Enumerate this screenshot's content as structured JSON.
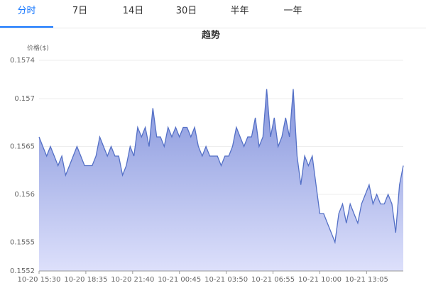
{
  "tabs": [
    "分时",
    "7日",
    "14日",
    "30日",
    "半年",
    "一年"
  ],
  "active_tab": 0,
  "chart_data": {
    "type": "area",
    "title": "趋势",
    "y_label": "价格($)",
    "x": [
      0,
      15,
      30,
      45,
      60,
      75,
      90,
      105,
      120,
      135,
      150,
      165,
      180,
      195,
      210,
      225,
      240,
      255,
      270,
      285,
      300,
      315,
      330,
      345,
      360,
      375,
      390,
      405,
      420,
      435,
      450,
      465,
      480,
      495,
      510,
      525,
      540,
      555,
      570,
      585,
      600,
      615,
      630,
      645,
      660,
      675,
      690,
      705,
      720,
      735,
      750,
      765,
      780,
      795,
      810,
      825,
      840,
      855,
      870,
      885,
      900,
      915,
      930,
      945,
      960,
      975,
      990,
      1005,
      1020,
      1035,
      1050,
      1065,
      1080,
      1095,
      1110,
      1125,
      1140,
      1155,
      1170,
      1185,
      1200,
      1215,
      1230,
      1245,
      1260,
      1275,
      1290,
      1305,
      1320,
      1335,
      1350,
      1365,
      1380,
      1395,
      1410,
      1425,
      1440
    ],
    "series": [
      {
        "name": "价格",
        "color": "#5470c6",
        "values": [
          0.1566,
          0.1565,
          0.1564,
          0.1565,
          0.1564,
          0.1563,
          0.1564,
          0.1562,
          0.1563,
          0.1564,
          0.1565,
          0.1564,
          0.1563,
          0.1563,
          0.1563,
          0.1564,
          0.1566,
          0.1565,
          0.1564,
          0.1565,
          0.1564,
          0.1564,
          0.1562,
          0.1563,
          0.1565,
          0.1564,
          0.1567,
          0.1566,
          0.1567,
          0.1565,
          0.1569,
          0.1566,
          0.1566,
          0.1565,
          0.1567,
          0.1566,
          0.1567,
          0.1566,
          0.1567,
          0.1567,
          0.1566,
          0.1567,
          0.1565,
          0.1564,
          0.1565,
          0.1564,
          0.1564,
          0.1564,
          0.1563,
          0.1564,
          0.1564,
          0.1565,
          0.1567,
          0.1566,
          0.1565,
          0.1566,
          0.1566,
          0.1568,
          0.1565,
          0.1566,
          0.1571,
          0.1566,
          0.1568,
          0.1565,
          0.1566,
          0.1568,
          0.1566,
          0.1571,
          0.1564,
          0.1561,
          0.1564,
          0.1563,
          0.1564,
          0.1561,
          0.1558,
          0.1558,
          0.1557,
          0.1556,
          0.1555,
          0.1558,
          0.1559,
          0.1557,
          0.1559,
          0.1558,
          0.1557,
          0.1559,
          0.156,
          0.1561,
          0.1559,
          0.156,
          0.1559,
          0.1559,
          0.156,
          0.1559,
          0.1556,
          0.1561,
          0.1563
        ]
      }
    ],
    "xlim": [
      0,
      1440
    ],
    "xticks": [
      {
        "value": 0,
        "label": "10-20 15:30"
      },
      {
        "value": 185,
        "label": "10-20 18:35"
      },
      {
        "value": 370,
        "label": "10-20 21:40"
      },
      {
        "value": 555,
        "label": "10-21 00:45"
      },
      {
        "value": 740,
        "label": "10-21 03:50"
      },
      {
        "value": 925,
        "label": "10-21 06:55"
      },
      {
        "value": 1110,
        "label": "10-21 10:00"
      },
      {
        "value": 1295,
        "label": "10-21 13:05"
      }
    ],
    "ylim": [
      0.1552,
      0.1574
    ],
    "yticks": [
      0.1552,
      0.1555,
      0.156,
      0.1565,
      0.157,
      0.1574
    ],
    "grid": true
  }
}
